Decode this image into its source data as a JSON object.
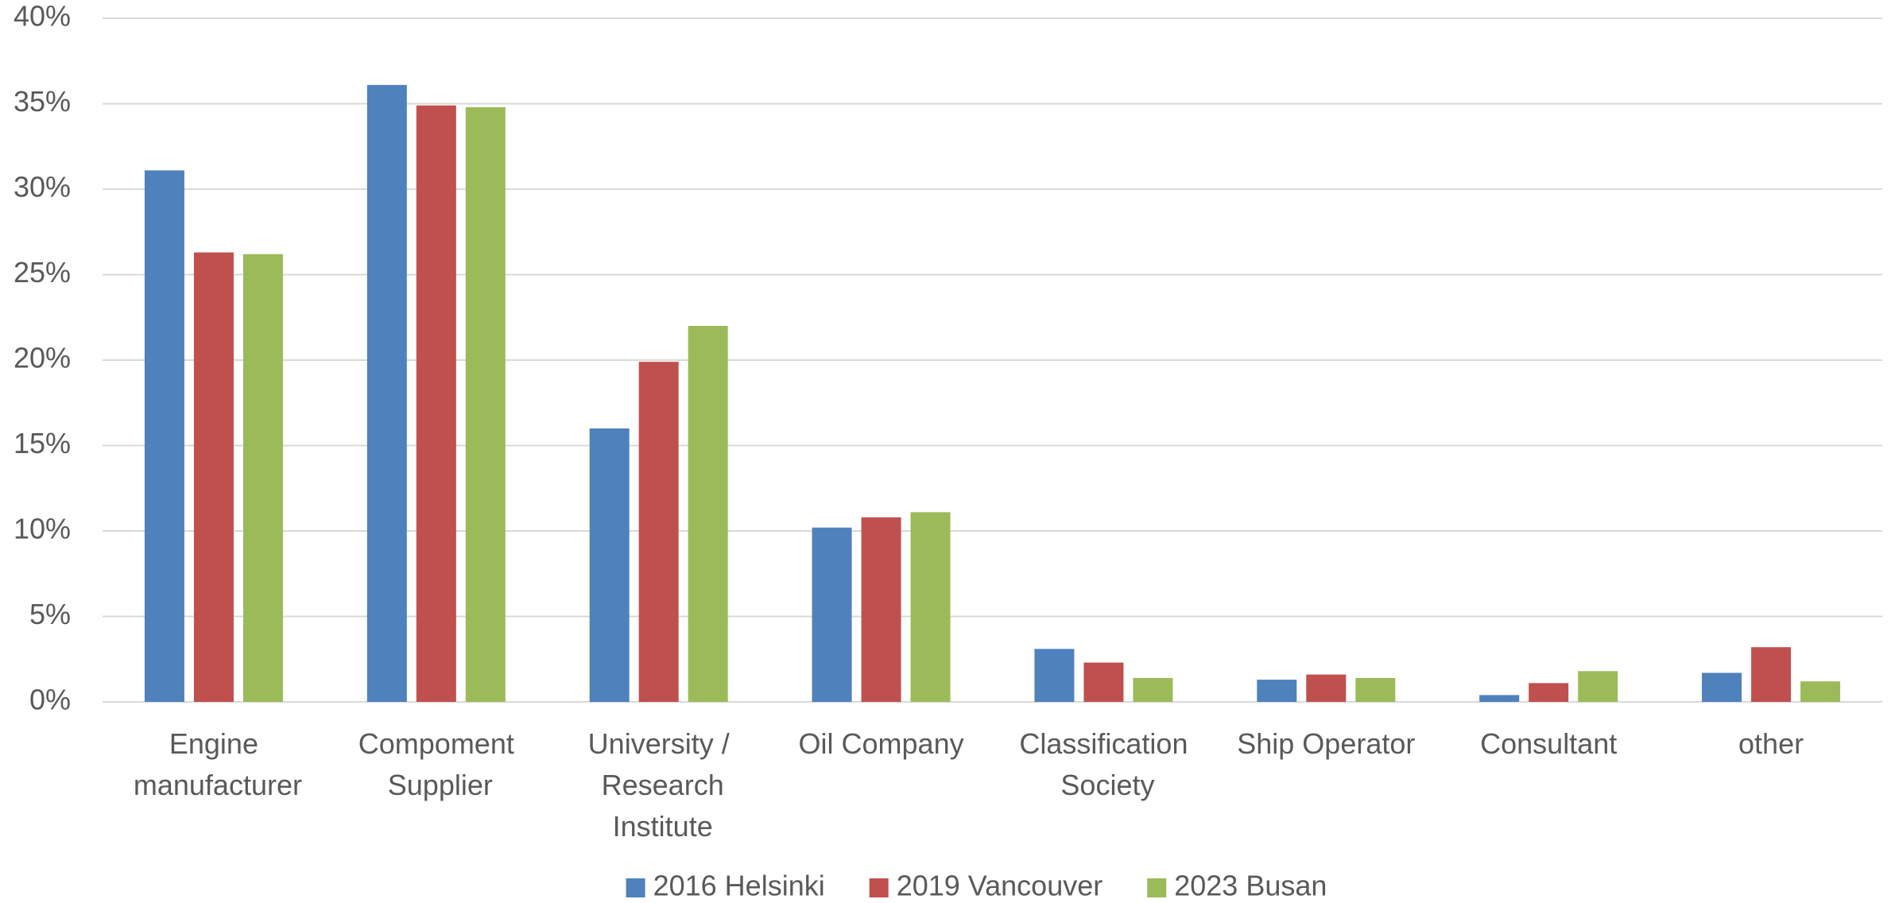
{
  "chart_data": {
    "type": "bar",
    "categories": [
      "Engine manufacturer",
      "Compoment Supplier",
      "University / Research Institute",
      "Oil Company",
      "Classification Society",
      "Ship Operator",
      "Consultant",
      "other"
    ],
    "series": [
      {
        "name": "2016 Helsinki",
        "color": "#4f81bd",
        "values": [
          31.1,
          36.1,
          16.0,
          10.2,
          3.1,
          1.3,
          0.4,
          1.7
        ]
      },
      {
        "name": "2019 Vancouver",
        "color": "#c0504d",
        "values": [
          26.3,
          34.9,
          19.9,
          10.8,
          2.3,
          1.6,
          1.1,
          3.2
        ]
      },
      {
        "name": "2023 Busan",
        "color": "#9bbb59",
        "values": [
          26.2,
          34.8,
          22.0,
          11.1,
          1.4,
          1.4,
          1.8,
          1.2
        ]
      }
    ],
    "ylim": [
      0,
      40
    ],
    "yticks": [
      {
        "value": 0,
        "label": "0%"
      },
      {
        "value": 5,
        "label": "5%"
      },
      {
        "value": 10,
        "label": "10%"
      },
      {
        "value": 15,
        "label": "15%"
      },
      {
        "value": 20,
        "label": "20%"
      },
      {
        "value": 25,
        "label": "25%"
      },
      {
        "value": 30,
        "label": "30%"
      },
      {
        "value": 35,
        "label": "35%"
      },
      {
        "value": 40,
        "label": "40%"
      }
    ],
    "grid": true,
    "legend": "bottom"
  }
}
